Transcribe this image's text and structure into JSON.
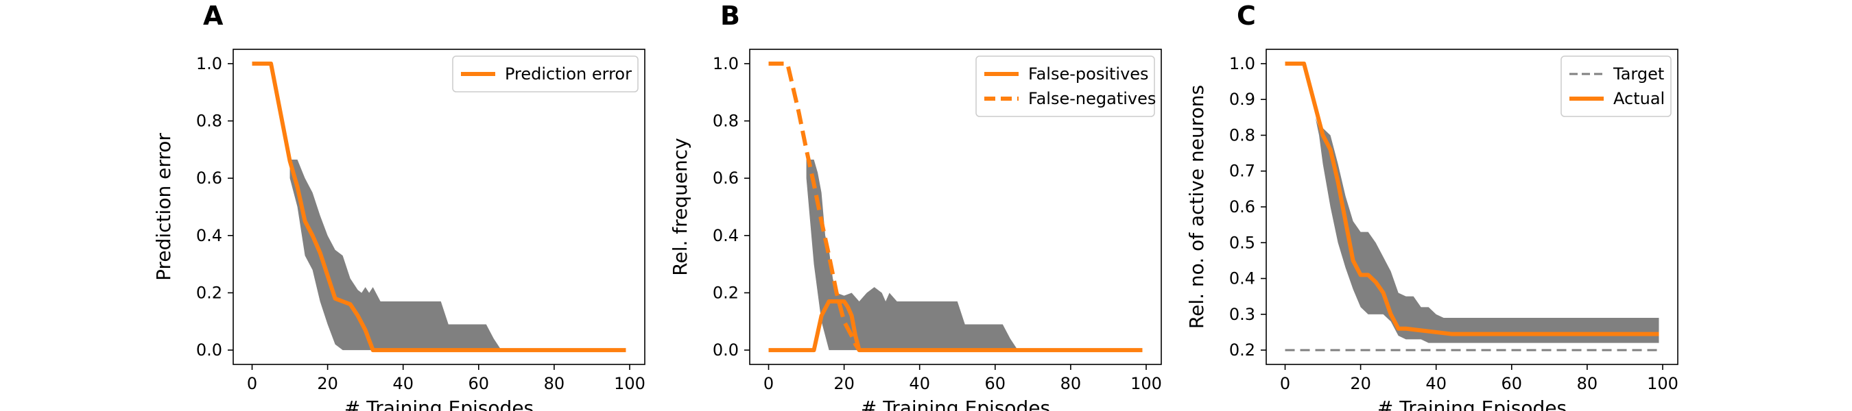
{
  "chart_data": [
    {
      "panel": "A",
      "type": "line",
      "xlabel": "# Training Episodes",
      "ylabel": "Prediction error",
      "xlim": [
        -5,
        104
      ],
      "ylim": [
        -0.05,
        1.05
      ],
      "xticks": [
        0,
        20,
        40,
        60,
        80,
        100
      ],
      "yticks": [
        0.0,
        0.2,
        0.4,
        0.6,
        0.8,
        1.0
      ],
      "ytick_labels": [
        "0.0",
        "0.2",
        "0.4",
        "0.6",
        "0.8",
        "1.0"
      ],
      "legend_position": "upper-right",
      "band": {
        "color": "#808080",
        "x": [
          10,
          12,
          14,
          16,
          18,
          20,
          22,
          24,
          26,
          28,
          29,
          30,
          31,
          32,
          34,
          36,
          50,
          52,
          60,
          62,
          64,
          66
        ],
        "upper": [
          0.665,
          0.665,
          0.6,
          0.55,
          0.47,
          0.4,
          0.35,
          0.33,
          0.25,
          0.21,
          0.2,
          0.22,
          0.2,
          0.22,
          0.17,
          0.17,
          0.17,
          0.09,
          0.09,
          0.09,
          0.04,
          0.0
        ],
        "lower": [
          0.6,
          0.5,
          0.33,
          0.28,
          0.17,
          0.09,
          0.02,
          0.0,
          0.0,
          0.0,
          0.0,
          0.0,
          0.0,
          0.0,
          0.0,
          0.0,
          0.0,
          0.0,
          0.0,
          0.0,
          0.0,
          0.0
        ]
      },
      "series": [
        {
          "name": "Prediction error",
          "color": "#ff7f0e",
          "style": "solid",
          "x": [
            0,
            5,
            10,
            12,
            14,
            16,
            18,
            20,
            22,
            24,
            26,
            28,
            30,
            32,
            34,
            40,
            60,
            80,
            99
          ],
          "y": [
            1.0,
            1.0,
            0.66,
            0.57,
            0.45,
            0.4,
            0.34,
            0.26,
            0.18,
            0.17,
            0.16,
            0.12,
            0.07,
            0.0,
            0.0,
            0.0,
            0.0,
            0.0,
            0.0
          ]
        }
      ]
    },
    {
      "panel": "B",
      "type": "line",
      "xlabel": "# Training Episodes",
      "ylabel": "Rel. frequency",
      "xlim": [
        -5,
        104
      ],
      "ylim": [
        -0.05,
        1.05
      ],
      "xticks": [
        0,
        20,
        40,
        60,
        80,
        100
      ],
      "yticks": [
        0.0,
        0.2,
        0.4,
        0.6,
        0.8,
        1.0
      ],
      "ytick_labels": [
        "0.0",
        "0.2",
        "0.4",
        "0.6",
        "0.8",
        "1.0"
      ],
      "legend_position": "upper-right",
      "band": {
        "color": "#808080",
        "x": [
          10,
          12,
          13,
          14,
          15,
          16,
          17,
          18,
          20,
          22,
          24,
          26,
          28,
          30,
          31,
          32,
          34,
          36,
          50,
          52,
          60,
          62,
          64,
          66
        ],
        "upper": [
          0.665,
          0.665,
          0.62,
          0.55,
          0.4,
          0.35,
          0.25,
          0.2,
          0.19,
          0.2,
          0.17,
          0.2,
          0.22,
          0.2,
          0.17,
          0.2,
          0.17,
          0.17,
          0.17,
          0.09,
          0.09,
          0.09,
          0.04,
          0.0
        ],
        "lower": [
          0.6,
          0.3,
          0.2,
          0.1,
          0.05,
          0.0,
          0.0,
          0.0,
          0.0,
          0.0,
          0.0,
          0.0,
          0.0,
          0.0,
          0.0,
          0.0,
          0.0,
          0.0,
          0.0,
          0.0,
          0.0,
          0.0,
          0.0,
          0.0
        ]
      },
      "series": [
        {
          "name": "False-positives",
          "color": "#ff7f0e",
          "style": "solid",
          "x": [
            0,
            10,
            12,
            13,
            14,
            16,
            18,
            20,
            21,
            22,
            23,
            24,
            26,
            30,
            40,
            60,
            80,
            99
          ],
          "y": [
            0.0,
            0.0,
            0.0,
            0.06,
            0.12,
            0.17,
            0.17,
            0.17,
            0.15,
            0.12,
            0.05,
            0.0,
            0.0,
            0.0,
            0.0,
            0.0,
            0.0,
            0.0
          ]
        },
        {
          "name": "False-negatives",
          "color": "#ff7f0e",
          "style": "dashed",
          "x": [
            0,
            5,
            8,
            10,
            12,
            14,
            16,
            18,
            20,
            22,
            23,
            24
          ],
          "y": [
            1.0,
            1.0,
            0.83,
            0.7,
            0.58,
            0.45,
            0.33,
            0.2,
            0.1,
            0.05,
            0.02,
            0.0
          ]
        }
      ]
    },
    {
      "panel": "C",
      "type": "line",
      "xlabel": "# Training Episodes",
      "ylabel": "Rel. no. of active neurons",
      "xlim": [
        -5,
        104
      ],
      "ylim": [
        0.16,
        1.04
      ],
      "xticks": [
        0,
        20,
        40,
        60,
        80,
        100
      ],
      "yticks": [
        0.2,
        0.3,
        0.4,
        0.5,
        0.6,
        0.7,
        0.8,
        0.9,
        1.0
      ],
      "ytick_labels": [
        "0.2",
        "0.3",
        "0.4",
        "0.5",
        "0.6",
        "0.7",
        "0.8",
        "0.9",
        "1.0"
      ],
      "legend_position": "upper-right",
      "band": {
        "color": "#808080",
        "x": [
          8,
          9,
          10,
          12,
          14,
          16,
          18,
          20,
          22,
          24,
          26,
          28,
          30,
          32,
          34,
          36,
          38,
          40,
          42,
          50,
          99
        ],
        "upper": [
          0.85,
          0.82,
          0.82,
          0.8,
          0.72,
          0.63,
          0.56,
          0.53,
          0.53,
          0.5,
          0.46,
          0.42,
          0.36,
          0.35,
          0.35,
          0.32,
          0.32,
          0.3,
          0.29,
          0.29,
          0.29
        ],
        "lower": [
          0.85,
          0.8,
          0.72,
          0.6,
          0.5,
          0.43,
          0.37,
          0.32,
          0.3,
          0.3,
          0.3,
          0.28,
          0.24,
          0.23,
          0.23,
          0.23,
          0.22,
          0.22,
          0.22,
          0.22,
          0.22
        ]
      },
      "series": [
        {
          "name": "Target",
          "color": "#808080",
          "style": "dashed-thin",
          "x": [
            0,
            99
          ],
          "y": [
            0.2,
            0.2
          ]
        },
        {
          "name": "Actual",
          "color": "#ff7f0e",
          "style": "solid",
          "x": [
            0,
            5,
            8,
            10,
            12,
            14,
            16,
            18,
            20,
            22,
            24,
            26,
            28,
            30,
            32,
            36,
            40,
            44,
            60,
            80,
            99
          ],
          "y": [
            1.0,
            1.0,
            0.88,
            0.8,
            0.76,
            0.67,
            0.56,
            0.45,
            0.41,
            0.41,
            0.39,
            0.36,
            0.3,
            0.26,
            0.26,
            0.255,
            0.25,
            0.245,
            0.245,
            0.245,
            0.245
          ]
        }
      ]
    }
  ]
}
